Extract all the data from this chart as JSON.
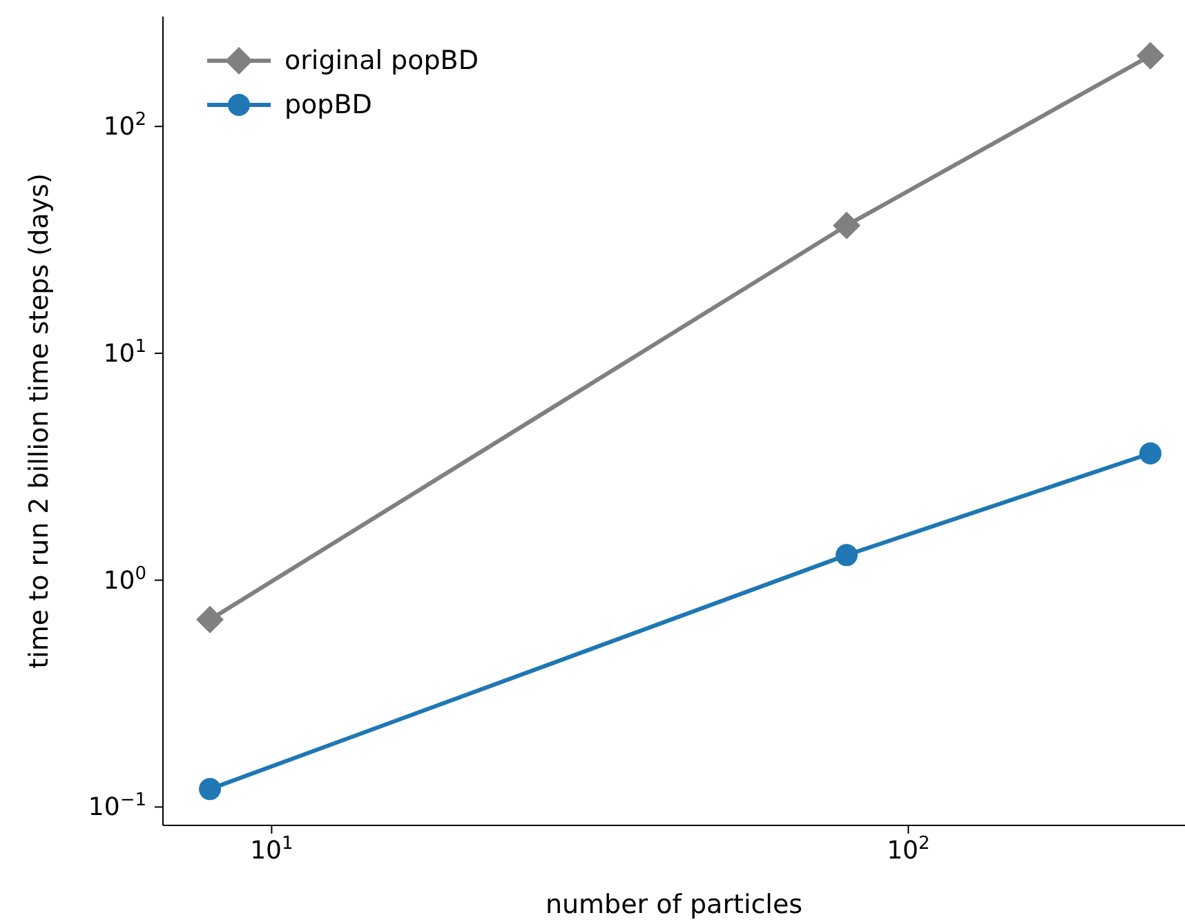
{
  "chart_data": {
    "type": "line",
    "xlabel": "number of particles",
    "ylabel": "time to run 2 billion time steps (days)",
    "log": "xy",
    "x": [
      8,
      80,
      240
    ],
    "series": [
      {
        "name": "original popBD",
        "color": "#808080",
        "marker": "diamond",
        "values": [
          0.67,
          36.6,
          205
        ]
      },
      {
        "name": "popBD",
        "color": "#1f77b4",
        "marker": "circle",
        "values": [
          0.12,
          1.29,
          3.62
        ]
      }
    ],
    "xlim": [
      6.75,
      272
    ],
    "ylim": [
      0.083,
      305
    ],
    "xticks": [
      {
        "value": 10,
        "label": "10$^{1}$"
      },
      {
        "value": 100,
        "label": "10$^{2}$"
      }
    ],
    "yticks": [
      {
        "value": 0.1,
        "label": "10$^{−1}$"
      },
      {
        "value": 1,
        "label": "10$^{0}$"
      },
      {
        "value": 10,
        "label": "10$^{1}$"
      },
      {
        "value": 100,
        "label": "10$^{2}$"
      }
    ],
    "legend": "top left",
    "line_style": "solid"
  }
}
